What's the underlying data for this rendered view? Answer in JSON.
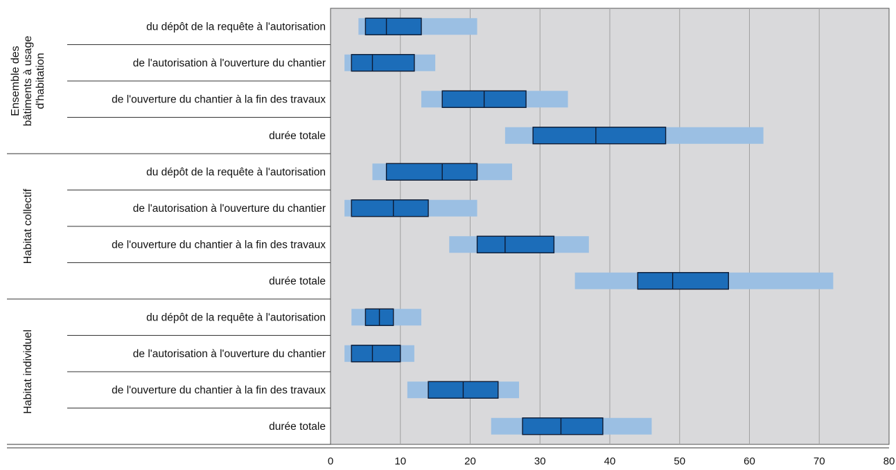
{
  "chart_data": {
    "type": "boxplot-horizontal",
    "xlim": [
      0,
      80
    ],
    "x_ticks": [
      "0",
      "10",
      "20",
      "30",
      "40",
      "50",
      "60",
      "70",
      "80"
    ],
    "grid": true,
    "colors": {
      "plot_background": "#d9d9db",
      "whisker_band": "#9bbfe3",
      "box_fill": "#1c6db9",
      "box_border": "#0d1a33",
      "gridline": "#a0a0a0"
    },
    "groups": [
      {
        "label": "Ensemble des bâtiments à usage d'habitation",
        "label_lines": [
          "Ensemble des",
          "bâtiments à usage",
          "d'habitation"
        ],
        "rows": [
          {
            "label": "du dépôt de la requête à l'autorisation",
            "min": 4,
            "q1": 5,
            "median": 8,
            "q3": 13,
            "max": 21
          },
          {
            "label": "de l'autorisation à l'ouverture du chantier",
            "min": 2,
            "q1": 3,
            "median": 6,
            "q3": 12,
            "max": 15
          },
          {
            "label": "de l'ouverture du chantier à la fin des travaux",
            "min": 13,
            "q1": 16,
            "median": 22,
            "q3": 28,
            "max": 34
          },
          {
            "label": "durée totale",
            "min": 25,
            "q1": 29,
            "median": 38,
            "q3": 48,
            "max": 62
          }
        ]
      },
      {
        "label": "Habitat collectif",
        "label_lines": [
          "Habitat collectif"
        ],
        "rows": [
          {
            "label": "du dépôt de la requête à l'autorisation",
            "min": 6,
            "q1": 8,
            "median": 16,
            "q3": 21,
            "max": 26
          },
          {
            "label": "de l'autorisation à l'ouverture du chantier",
            "min": 2,
            "q1": 3,
            "median": 9,
            "q3": 14,
            "max": 21
          },
          {
            "label": "de l'ouverture du chantier à la fin des travaux",
            "min": 17,
            "q1": 21,
            "median": 25,
            "q3": 32,
            "max": 37
          },
          {
            "label": "durée totale",
            "min": 35,
            "q1": 44,
            "median": 49,
            "q3": 57,
            "max": 72
          }
        ]
      },
      {
        "label": "Habitat individuel",
        "label_lines": [
          "Habitat individuel"
        ],
        "rows": [
          {
            "label": "du dépôt de la requête à l'autorisation",
            "min": 3,
            "q1": 5,
            "median": 7,
            "q3": 9,
            "max": 13
          },
          {
            "label": "de l'autorisation à l'ouverture du chantier",
            "min": 2,
            "q1": 3,
            "median": 6,
            "q3": 10,
            "max": 12
          },
          {
            "label": "de l'ouverture du chantier à la fin des travaux",
            "min": 11,
            "q1": 14,
            "median": 19,
            "q3": 24,
            "max": 27
          },
          {
            "label": "durée totale",
            "min": 23,
            "q1": 27.5,
            "median": 33,
            "q3": 39,
            "max": 46
          }
        ]
      }
    ]
  }
}
